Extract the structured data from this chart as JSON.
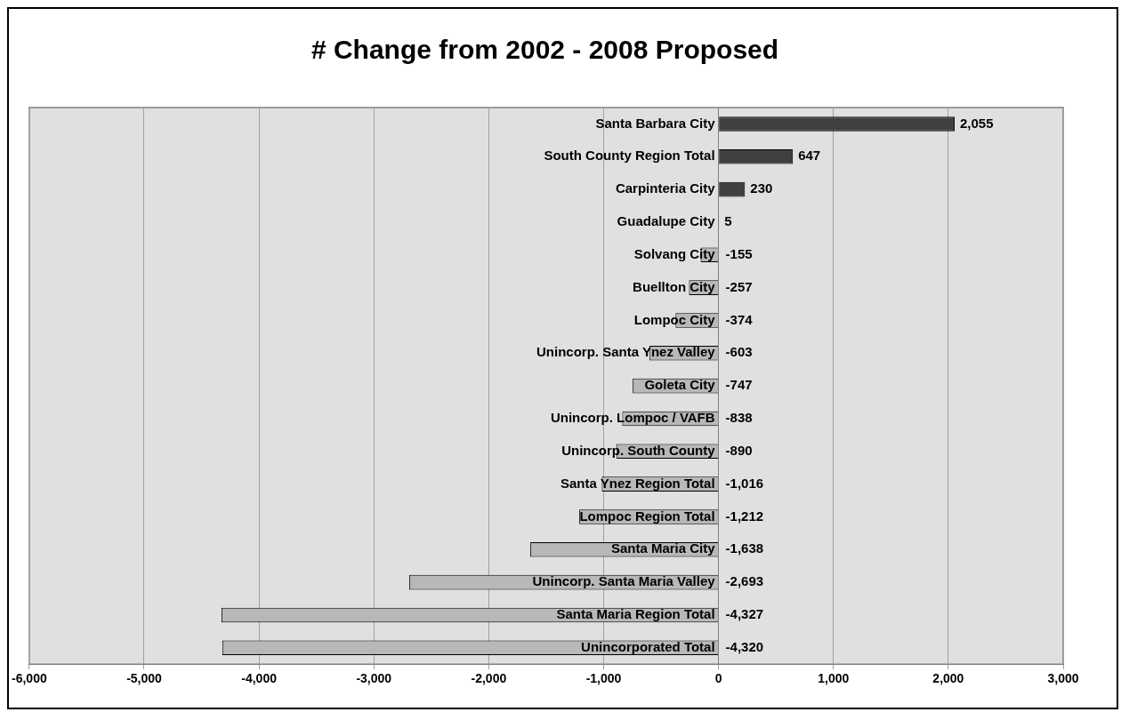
{
  "chart_data": {
    "type": "bar",
    "orientation": "horizontal",
    "title": "# Change from 2002 - 2008 Proposed",
    "categories": [
      "Santa Barbara City",
      "South County Region Total",
      "Carpinteria City",
      "Guadalupe City",
      "Solvang City",
      "Buellton City",
      "Lompoc City",
      "Unincorp. Santa Ynez Valley",
      "Goleta City",
      "Unincorp. Lompoc / VAFB",
      "Unincorp. South County",
      "Santa Ynez Region Total",
      "Lompoc Region Total",
      "Santa Maria City",
      "Unincorp. Santa Maria Valley",
      "Santa Maria Region Total",
      "Unincorporated Total"
    ],
    "values": [
      2055,
      647,
      230,
      5,
      -155,
      -257,
      -374,
      -603,
      -747,
      -838,
      -890,
      -1016,
      -1212,
      -1638,
      -2693,
      -4327,
      -4320
    ],
    "colors": [
      "#404040",
      "#404040",
      "#404040",
      "#404040",
      "#b8b8b8",
      "#b8b8b8",
      "#b8b8b8",
      "#b8b8b8",
      "#b8b8b8",
      "#b8b8b8",
      "#b8b8b8",
      "#b8b8b8",
      "#b8b8b8",
      "#b8b8b8",
      "#b8b8b8",
      "#b8b8b8",
      "#b8b8b8"
    ],
    "xlim": [
      -6000,
      3000
    ],
    "xticks": [
      {
        "value": -6000,
        "label": "-6,000"
      },
      {
        "value": -5000,
        "label": "-5,000"
      },
      {
        "value": -4000,
        "label": "-4,000"
      },
      {
        "value": -3000,
        "label": "-3,000"
      },
      {
        "value": -2000,
        "label": "-2,000"
      },
      {
        "value": -1000,
        "label": "-1,000"
      },
      0,
      {
        "value": 1000,
        "label": "1,000"
      },
      {
        "value": 2000,
        "label": "2,000"
      },
      {
        "value": 3000,
        "label": "3,000"
      }
    ],
    "value_labels": [
      "2,055",
      "647",
      "230",
      "5",
      "-155",
      "-257",
      "-374",
      "-603",
      "-747",
      "-838",
      "-890",
      "-1,016",
      "-1,212",
      "-1,638",
      "-2,693",
      "-4,327",
      "-4,320"
    ],
    "grid": "x",
    "legend": false
  }
}
